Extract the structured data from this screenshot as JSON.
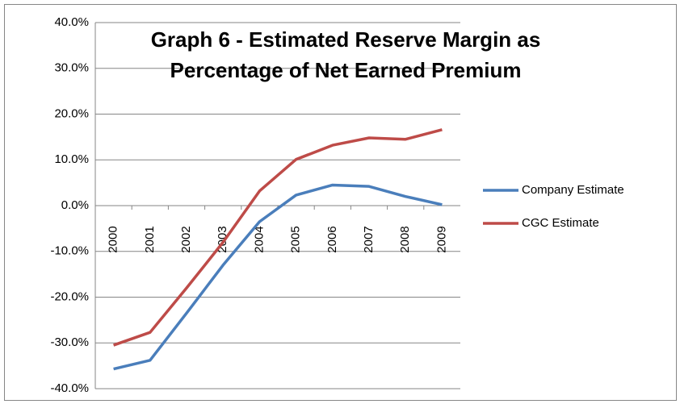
{
  "chart_data": {
    "type": "line",
    "title": "Graph 6 - Estimated Reserve Margin as Percentage of Net Earned Premium",
    "categories": [
      "2000",
      "2001",
      "2002",
      "2003",
      "2004",
      "2005",
      "2006",
      "2007",
      "2008",
      "2009"
    ],
    "series": [
      {
        "name": "Company Estimate",
        "color": "#4a7ebb",
        "values": [
          -35.7,
          -33.8,
          -23.5,
          -13,
          -3.5,
          2.3,
          4.5,
          4.2,
          2.0,
          0.2
        ]
      },
      {
        "name": "CGC Estimate",
        "color": "#be4b48",
        "values": [
          -30.5,
          -27.7,
          -18,
          -8,
          3.2,
          10.1,
          13.2,
          14.8,
          14.5,
          16.6
        ]
      }
    ],
    "ylim": [
      -40,
      40
    ],
    "yticks": [
      {
        "value": -40,
        "label": "-40.0%"
      },
      {
        "value": -30,
        "label": "-30.0%"
      },
      {
        "value": -20,
        "label": "-20.0%"
      },
      {
        "value": -10,
        "label": "-10.0%"
      },
      {
        "value": 0,
        "label": "0.0%"
      },
      {
        "value": 10,
        "label": "10.0%"
      },
      {
        "value": 20,
        "label": "20.0%"
      },
      {
        "value": 30,
        "label": "30.0%"
      },
      {
        "value": 40,
        "label": "40.0%"
      }
    ],
    "grid": true,
    "legend": "right"
  }
}
